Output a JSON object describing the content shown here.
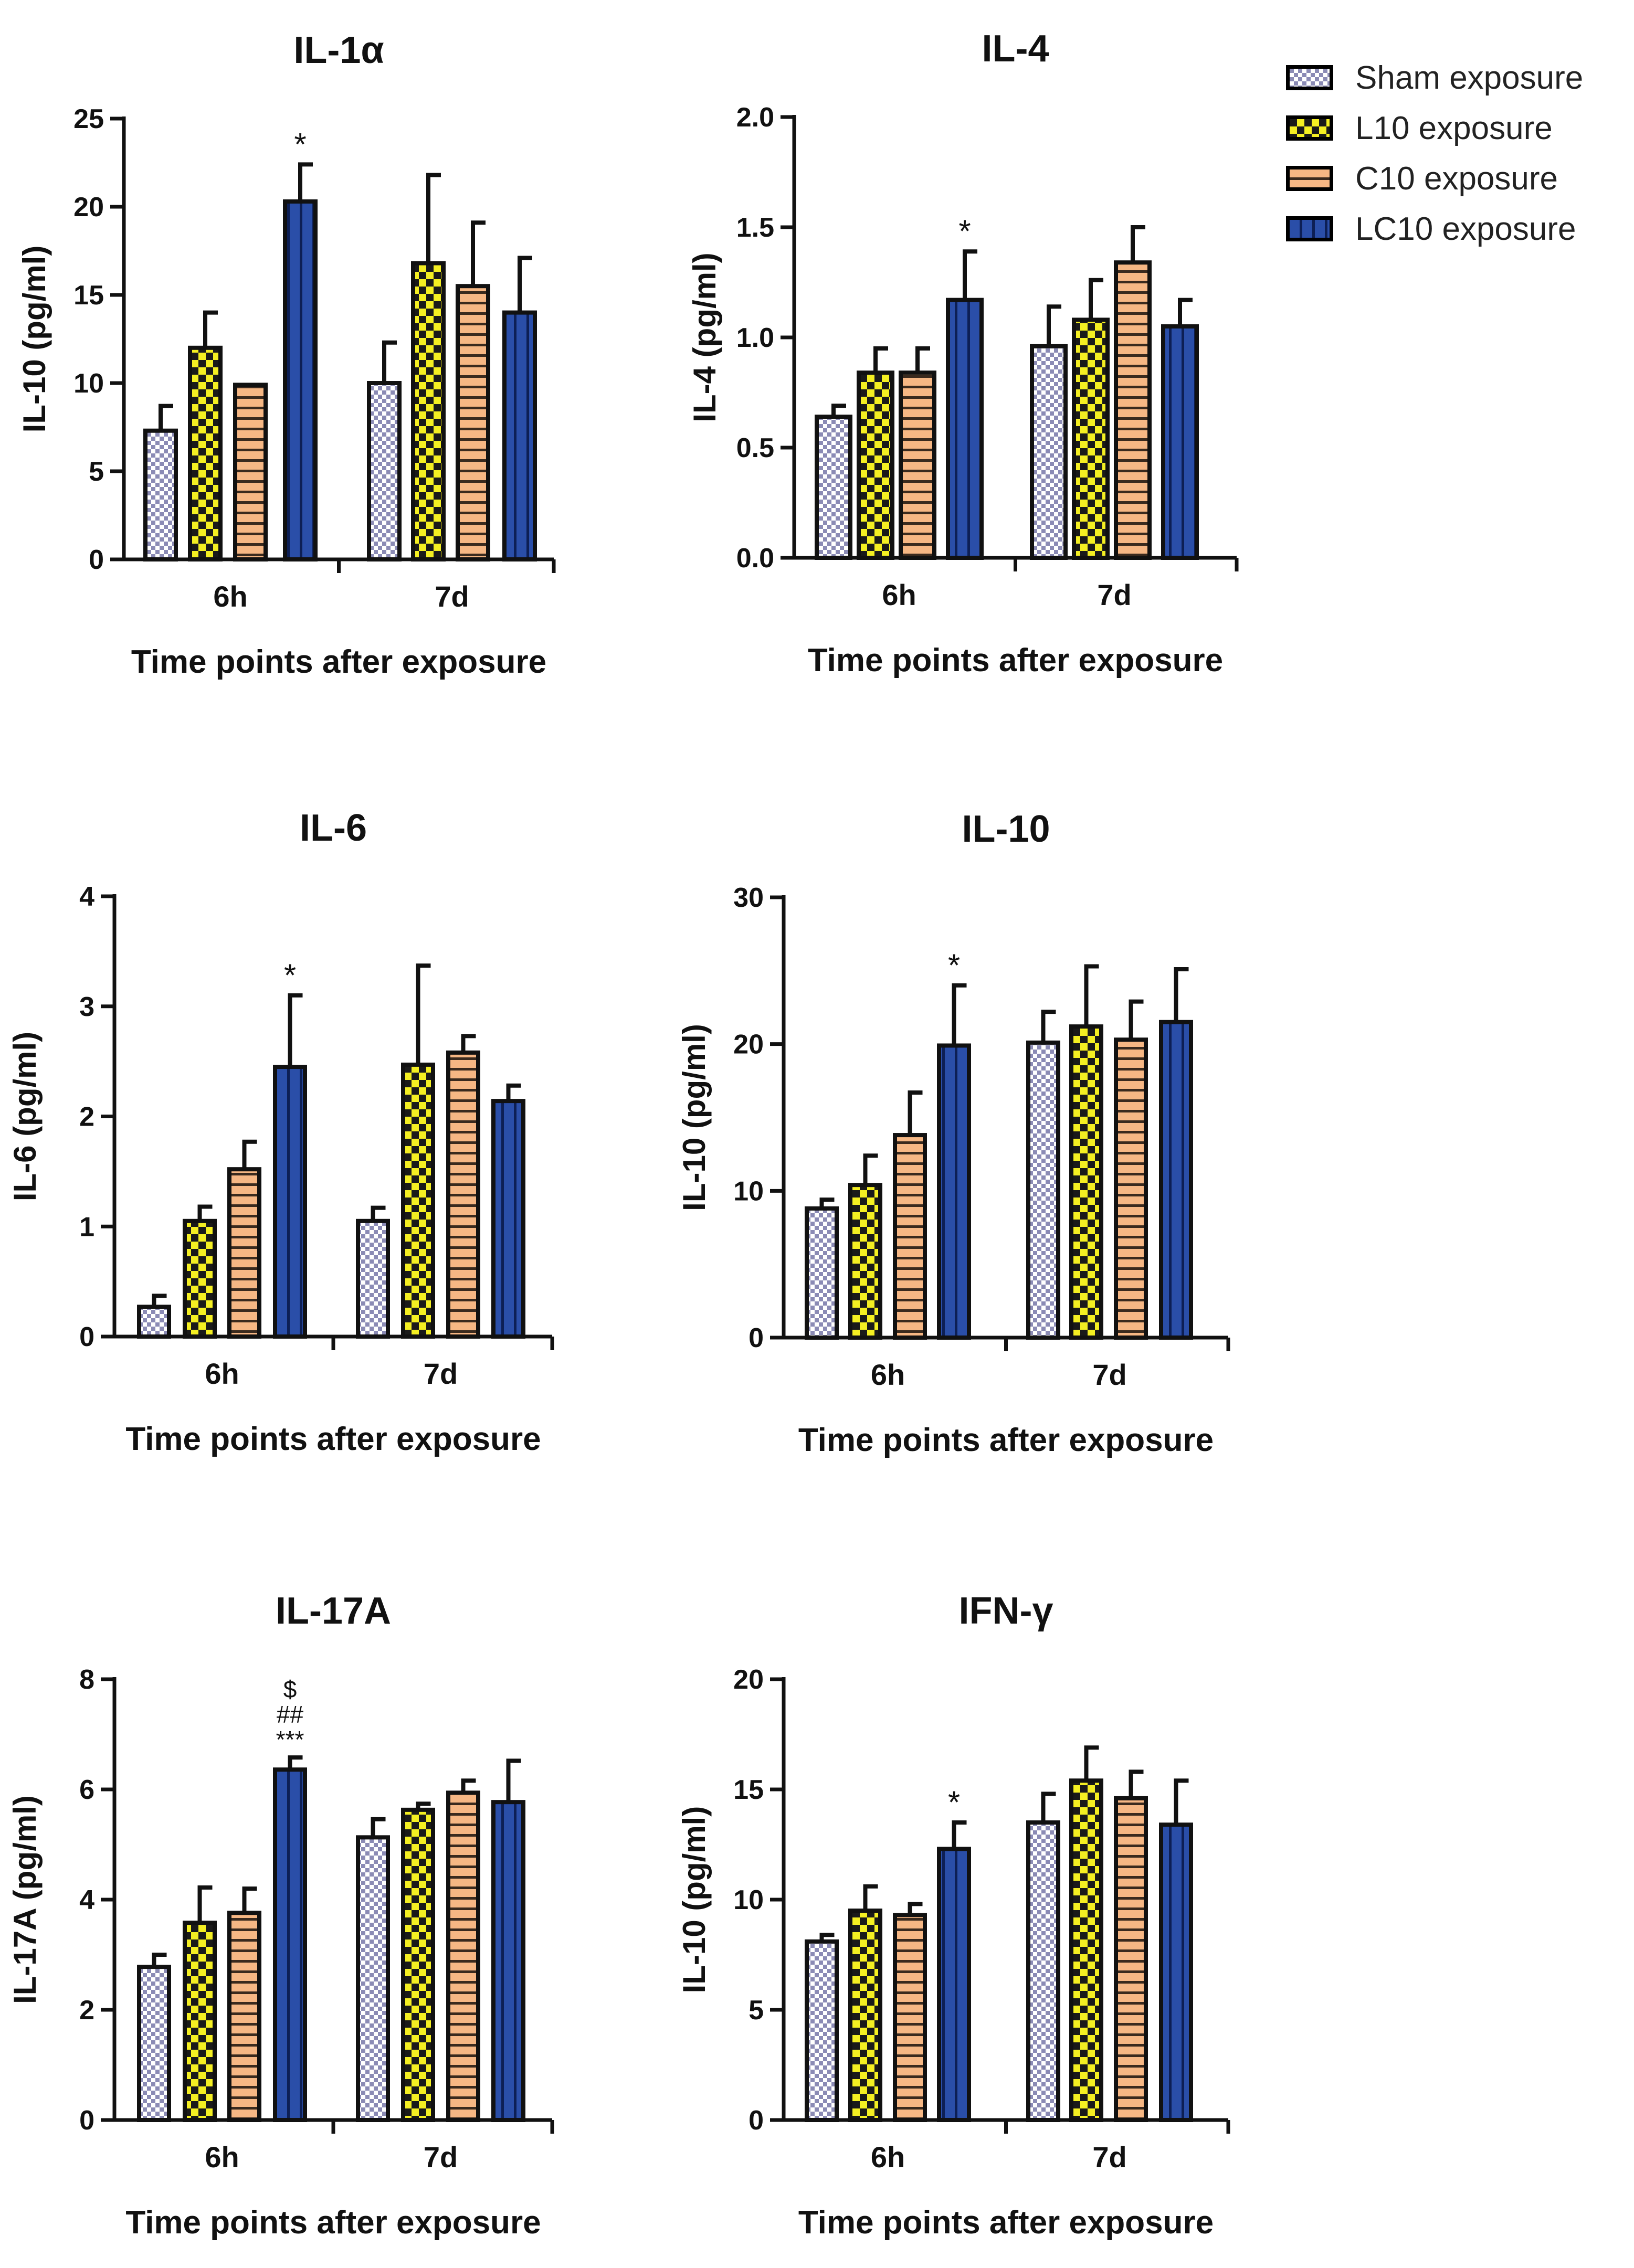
{
  "chart_data": [
    {
      "type": "bar",
      "title": "IL-1α",
      "ylabel": "IL-10 (pg/ml)",
      "xlabel": "Time points after exposure",
      "categories": [
        "6h",
        "7d"
      ],
      "ylim": [
        0,
        25
      ],
      "yticks": [
        "0",
        "5",
        "10",
        "15",
        "20",
        "25"
      ],
      "ytick_values": [
        0,
        5,
        10,
        15,
        20,
        25
      ],
      "series": [
        {
          "name": "Sham exposure",
          "values": [
            7.3,
            10.0
          ],
          "errors": [
            1.4,
            2.3
          ]
        },
        {
          "name": "L10 exposure",
          "values": [
            12.0,
            16.8
          ],
          "errors": [
            2.0,
            5.0
          ]
        },
        {
          "name": "C10 exposure",
          "values": [
            9.9,
            15.5
          ],
          "errors": [
            0,
            3.6
          ]
        },
        {
          "name": "LC10 exposure",
          "values": [
            20.3,
            14.0
          ],
          "errors": [
            2.1,
            3.1
          ]
        }
      ],
      "annotations": [
        {
          "category": "6h",
          "series": "LC10 exposure",
          "text": [
            "*"
          ]
        }
      ]
    },
    {
      "type": "bar",
      "title": "IL-4",
      "ylabel": "IL-4 (pg/ml)",
      "xlabel": "Time points after exposure",
      "categories": [
        "6h",
        "7d"
      ],
      "ylim": [
        0,
        2.0
      ],
      "yticks": [
        "0.0",
        "0.5",
        "1.0",
        "1.5",
        "2.0"
      ],
      "ytick_values": [
        0,
        0.5,
        1.0,
        1.5,
        2.0
      ],
      "series": [
        {
          "name": "Sham exposure",
          "values": [
            0.64,
            0.96
          ],
          "errors": [
            0.05,
            0.18
          ]
        },
        {
          "name": "L10 exposure",
          "values": [
            0.84,
            1.08
          ],
          "errors": [
            0.11,
            0.18
          ]
        },
        {
          "name": "C10 exposure",
          "values": [
            0.84,
            1.34
          ],
          "errors": [
            0.11,
            0.16
          ]
        },
        {
          "name": "LC10 exposure",
          "values": [
            1.17,
            1.05
          ],
          "errors": [
            0.22,
            0.12
          ]
        }
      ],
      "annotations": [
        {
          "category": "6h",
          "series": "LC10 exposure",
          "text": [
            "*"
          ]
        }
      ]
    },
    {
      "type": "bar",
      "title": "IL-6",
      "ylabel": "IL-6 (pg/ml)",
      "xlabel": "Time points after exposure",
      "categories": [
        "6h",
        "7d"
      ],
      "ylim": [
        0,
        4
      ],
      "yticks": [
        "0",
        "1",
        "2",
        "3",
        "4"
      ],
      "ytick_values": [
        0,
        1,
        2,
        3,
        4
      ],
      "series": [
        {
          "name": "Sham exposure",
          "values": [
            0.27,
            1.05
          ],
          "errors": [
            0.1,
            0.12
          ]
        },
        {
          "name": "L10 exposure",
          "values": [
            1.05,
            2.47
          ],
          "errors": [
            0.13,
            0.9
          ]
        },
        {
          "name": "C10 exposure",
          "values": [
            1.52,
            2.58
          ],
          "errors": [
            0.25,
            0.15
          ]
        },
        {
          "name": "LC10 exposure",
          "values": [
            2.45,
            2.14
          ],
          "errors": [
            0.65,
            0.14
          ]
        }
      ],
      "annotations": [
        {
          "category": "6h",
          "series": "LC10 exposure",
          "text": [
            "*"
          ]
        }
      ]
    },
    {
      "type": "bar",
      "title": "IL-10",
      "ylabel": "IL-10 (pg/ml)",
      "xlabel": "Time points after exposure",
      "categories": [
        "6h",
        "7d"
      ],
      "ylim": [
        0,
        30
      ],
      "yticks": [
        "0",
        "10",
        "20",
        "30"
      ],
      "ytick_values": [
        0,
        10,
        20,
        30
      ],
      "series": [
        {
          "name": "Sham exposure",
          "values": [
            8.8,
            20.1
          ],
          "errors": [
            0.6,
            2.1
          ]
        },
        {
          "name": "L10 exposure",
          "values": [
            10.4,
            21.2
          ],
          "errors": [
            2.0,
            4.1
          ]
        },
        {
          "name": "C10 exposure",
          "values": [
            13.8,
            20.3
          ],
          "errors": [
            2.9,
            2.6
          ]
        },
        {
          "name": "LC10 exposure",
          "values": [
            19.9,
            21.5
          ],
          "errors": [
            4.1,
            3.6
          ]
        }
      ],
      "annotations": [
        {
          "category": "6h",
          "series": "LC10 exposure",
          "text": [
            "*"
          ]
        }
      ]
    },
    {
      "type": "bar",
      "title": "IL-17A",
      "ylabel": "IL-17A (pg/ml)",
      "xlabel": "Time points after exposure",
      "categories": [
        "6h",
        "7d"
      ],
      "ylim": [
        0,
        8
      ],
      "yticks": [
        "0",
        "2",
        "4",
        "6",
        "8"
      ],
      "ytick_values": [
        0,
        2,
        4,
        6,
        8
      ],
      "series": [
        {
          "name": "Sham exposure",
          "values": [
            2.78,
            5.13
          ],
          "errors": [
            0.22,
            0.33
          ]
        },
        {
          "name": "L10 exposure",
          "values": [
            3.58,
            5.63
          ],
          "errors": [
            0.64,
            0.11
          ]
        },
        {
          "name": "C10 exposure",
          "values": [
            3.76,
            5.94
          ],
          "errors": [
            0.44,
            0.22
          ]
        },
        {
          "name": "LC10 exposure",
          "values": [
            6.36,
            5.77
          ],
          "errors": [
            0.22,
            0.75
          ]
        }
      ],
      "annotations": [
        {
          "category": "6h",
          "series": "LC10 exposure",
          "text": [
            "$",
            "##",
            "***"
          ]
        }
      ]
    },
    {
      "type": "bar",
      "title": "IFN-γ",
      "ylabel": "IL-10 (pg/ml)",
      "xlabel": "Time points after exposure",
      "categories": [
        "6h",
        "7d"
      ],
      "ylim": [
        0,
        20
      ],
      "yticks": [
        "0",
        "5",
        "10",
        "15",
        "20"
      ],
      "ytick_values": [
        0,
        5,
        10,
        15,
        20
      ],
      "series": [
        {
          "name": "Sham exposure",
          "values": [
            8.1,
            13.5
          ],
          "errors": [
            0.3,
            1.3
          ]
        },
        {
          "name": "L10 exposure",
          "values": [
            9.5,
            15.4
          ],
          "errors": [
            1.1,
            1.5
          ]
        },
        {
          "name": "C10 exposure",
          "values": [
            9.3,
            14.6
          ],
          "errors": [
            0.5,
            1.2
          ]
        },
        {
          "name": "LC10 exposure",
          "values": [
            12.3,
            13.4
          ],
          "errors": [
            1.2,
            2.0
          ]
        }
      ],
      "annotations": [
        {
          "category": "6h",
          "series": "LC10 exposure",
          "text": [
            "*"
          ]
        }
      ]
    }
  ],
  "legend": {
    "items": [
      {
        "label": "Sham exposure",
        "pattern": "checker",
        "color": "#9b9bc4"
      },
      {
        "label": "L10 exposure",
        "pattern": "yellow-checker",
        "color": "#f2ee2a"
      },
      {
        "label": "C10 exposure",
        "pattern": "stripes",
        "color": "#f5b37e"
      },
      {
        "label": "LC10 exposure",
        "pattern": "blue-stripes",
        "color": "#2447a0"
      }
    ]
  }
}
